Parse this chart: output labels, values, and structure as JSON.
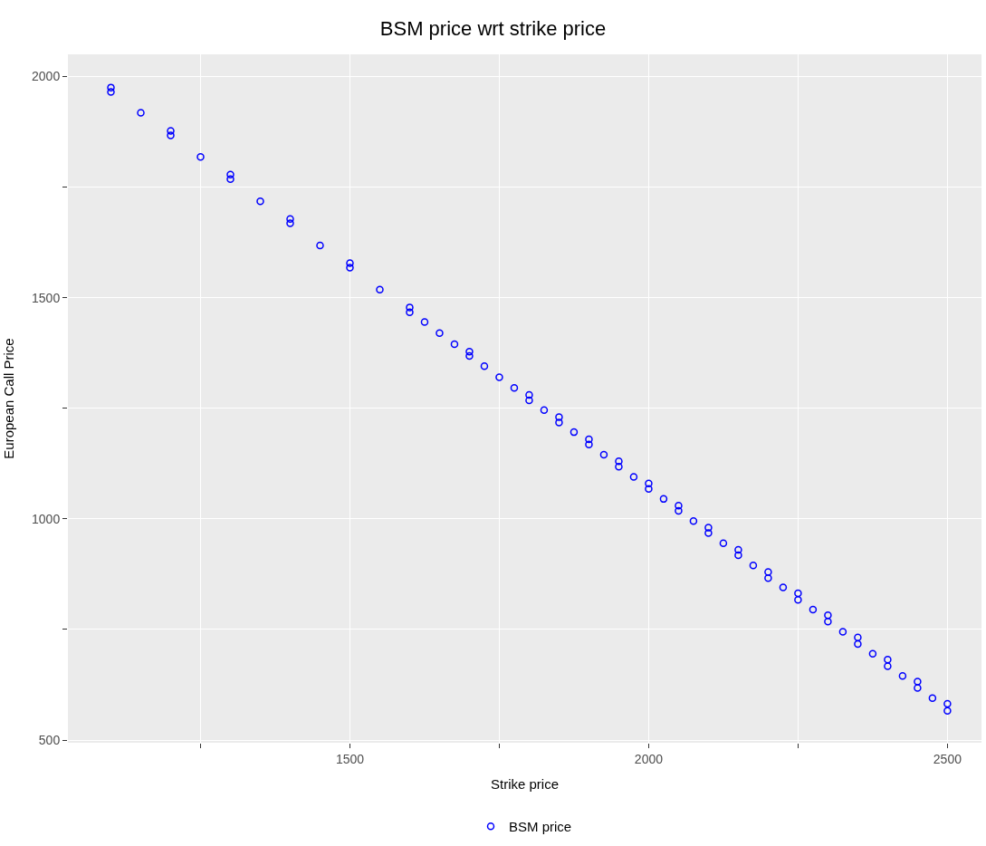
{
  "chart_data": {
    "type": "scatter",
    "title": "BSM price wrt strike price",
    "xlabel": "Strike price",
    "ylabel": "European Call Price",
    "x": [
      1100,
      1100,
      1150,
      1200,
      1200,
      1250,
      1300,
      1300,
      1350,
      1400,
      1400,
      1450,
      1500,
      1500,
      1550,
      1600,
      1600,
      1625,
      1650,
      1675,
      1700,
      1700,
      1725,
      1750,
      1775,
      1800,
      1800,
      1825,
      1850,
      1850,
      1875,
      1900,
      1900,
      1925,
      1950,
      1950,
      1975,
      2000,
      2000,
      2025,
      2050,
      2050,
      2075,
      2100,
      2100,
      2125,
      2150,
      2150,
      2175,
      2200,
      2200,
      2225,
      2250,
      2250,
      2275,
      2300,
      2300,
      2325,
      2350,
      2350,
      2375,
      2400,
      2400,
      2425,
      2450,
      2450,
      2475,
      2500,
      2500
    ],
    "series": [
      {
        "name": "BSM price",
        "color": "#0000ff",
        "values": [
          1965,
          1975,
          1918,
          1867,
          1877,
          1818,
          1768,
          1778,
          1718,
          1668,
          1678,
          1618,
          1568,
          1578,
          1518,
          1467,
          1478,
          1445,
          1420,
          1395,
          1368,
          1378,
          1345,
          1320,
          1296,
          1268,
          1280,
          1246,
          1218,
          1230,
          1196,
          1168,
          1180,
          1145,
          1118,
          1130,
          1095,
          1068,
          1080,
          1045,
          1018,
          1030,
          995,
          968,
          980,
          945,
          918,
          930,
          895,
          866,
          880,
          845,
          817,
          832,
          795,
          768,
          782,
          745,
          717,
          732,
          695,
          667,
          682,
          645,
          618,
          632,
          595,
          566,
          582
        ]
      }
    ],
    "xlim": [
      1028,
      2557
    ],
    "ylim": [
      494,
      2050
    ],
    "xticks": [
      {
        "value": 1250,
        "label": null
      },
      1500,
      {
        "value": 1750,
        "label": null
      },
      2000,
      {
        "value": 2250,
        "label": null
      },
      2500
    ],
    "yticks": [
      500,
      {
        "value": 750,
        "label": null
      },
      1000,
      {
        "value": 1250,
        "label": null
      },
      1500,
      {
        "value": 1750,
        "label": null
      },
      2000
    ],
    "grid": true,
    "legend": "bottom",
    "marker": "circle"
  }
}
